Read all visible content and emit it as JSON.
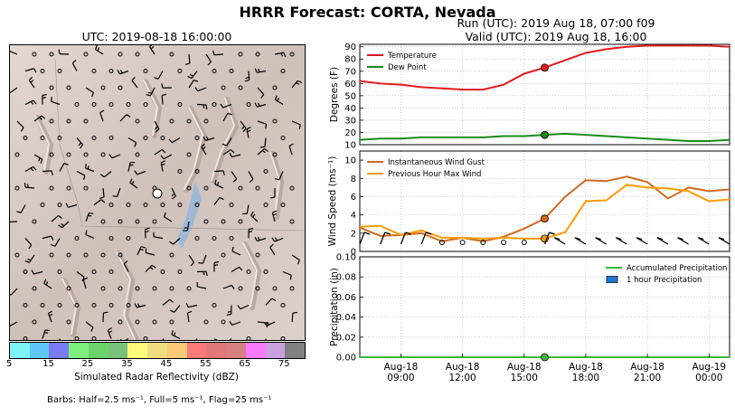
{
  "header": {
    "title": "HRRR Forecast: CORTA, Nevada",
    "run": "Run (UTC): 2019 Aug 18, 07:00 f09",
    "valid": "Valid (UTC): 2019 Aug 18, 16:00"
  },
  "map": {
    "utc_label": "UTC: 2019-08-18 16:00:00",
    "colorbar": {
      "colors": [
        "#7ef4f7",
        "#5fc8f6",
        "#7a7af2",
        "#7cf07a",
        "#6ad36a",
        "#7ac27a",
        "#fcfc7a",
        "#f0dc80",
        "#fcc87a",
        "#fc7a7a",
        "#e07a7a",
        "#d88080",
        "#fc7afc",
        "#c8a0e0",
        "#808080"
      ],
      "ticks": [
        "5",
        "15",
        "25",
        "35",
        "45",
        "55",
        "65",
        "75"
      ],
      "label": "Simulated Radar Reflectivity (dBZ)"
    },
    "barbs_note": "Barbs: Half=2.5 ms⁻¹, Full=5 ms⁻¹, Flag=25 ms⁻¹"
  },
  "chart_data": [
    {
      "type": "line",
      "ylabel": "Degrees (F)",
      "ylim": [
        10,
        92
      ],
      "yticks": [
        "10",
        "20",
        "30",
        "40",
        "50",
        "60",
        "70",
        "80",
        "90"
      ],
      "x": [
        7,
        8,
        9,
        10,
        11,
        12,
        13,
        14,
        15,
        16,
        17,
        18,
        19,
        20,
        21,
        22,
        23,
        24,
        25
      ],
      "series": [
        {
          "name": "Temperature",
          "color": "#e41a1c",
          "values": [
            62,
            60,
            59,
            57,
            56,
            55,
            55,
            59,
            68,
            73,
            79,
            85,
            88,
            90,
            91,
            91,
            91,
            91,
            90
          ]
        },
        {
          "name": "Dew Point",
          "color": "#1a8a1a",
          "values": [
            14,
            15,
            15,
            16,
            16,
            16,
            16,
            17,
            17,
            18,
            19,
            18,
            17,
            16,
            15,
            14,
            13,
            13,
            14
          ]
        }
      ],
      "marker_x": 16,
      "legend": "top-left",
      "grid": true
    },
    {
      "type": "line",
      "ylabel": "Wind Speed (ms⁻¹)",
      "ylim": [
        0,
        11
      ],
      "yticks": [
        "0",
        "2",
        "4",
        "6",
        "8",
        "10"
      ],
      "x": [
        7,
        8,
        9,
        10,
        11,
        12,
        13,
        14,
        15,
        16,
        17,
        18,
        19,
        20,
        21,
        22,
        23,
        24,
        25
      ],
      "series": [
        {
          "name": "Instantaneous Wind Gust",
          "color": "#d2691e",
          "values": [
            2.6,
            1.7,
            1.8,
            2.0,
            1.1,
            1.5,
            1.1,
            1.6,
            2.5,
            3.6,
            6.0,
            7.8,
            7.7,
            8.2,
            7.6,
            5.8,
            7.0,
            6.6,
            6.8
          ]
        },
        {
          "name": "Previous Hour Max Wind",
          "color": "#ff9a00",
          "values": [
            2.7,
            2.8,
            1.8,
            2.3,
            1.5,
            1.5,
            1.4,
            1.5,
            1.4,
            1.4,
            2.1,
            5.5,
            5.6,
            7.3,
            7.0,
            6.9,
            6.6,
            5.5,
            5.7
          ]
        }
      ],
      "marker_x": 16,
      "legend": "top-left",
      "grid": true
    },
    {
      "type": "line",
      "ylabel": "Precipitation (in)",
      "ylim": [
        0,
        0.1
      ],
      "yticks": [
        "0.00",
        "0.02",
        "0.04",
        "0.06",
        "0.08",
        "0.10"
      ],
      "x": [
        7,
        8,
        9,
        10,
        11,
        12,
        13,
        14,
        15,
        16,
        17,
        18,
        19,
        20,
        21,
        22,
        23,
        24,
        25
      ],
      "series": [
        {
          "name": "Accumulated Precipitation",
          "color": "#3cb83c",
          "values": [
            0,
            0,
            0,
            0,
            0,
            0,
            0,
            0,
            0,
            0,
            0,
            0,
            0,
            0,
            0,
            0,
            0,
            0,
            0
          ]
        }
      ],
      "bars": {
        "name": "1 hour Precipitation",
        "color": "#1f77d4"
      },
      "marker_x": 16,
      "legend": "top-right",
      "grid": true,
      "xticks": [
        {
          "x": 9,
          "label": "Aug-18\n09:00"
        },
        {
          "x": 12,
          "label": "Aug-18\n12:00"
        },
        {
          "x": 15,
          "label": "Aug-18\n15:00"
        },
        {
          "x": 18,
          "label": "Aug-18\n18:00"
        },
        {
          "x": 21,
          "label": "Aug-18\n21:00"
        },
        {
          "x": 24,
          "label": "Aug-19\n00:00"
        }
      ]
    }
  ]
}
